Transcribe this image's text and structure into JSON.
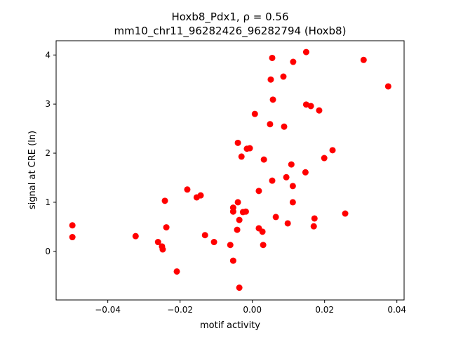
{
  "chart_data": {
    "type": "scatter",
    "title_line1": "Hoxb8_Pdx1, ρ = 0.56",
    "title_line2": "mm10_chr11_96282426_96282794 (Hoxb8)",
    "xlabel": "motif activity",
    "ylabel": "signal at CRE (ln)",
    "xlim": [
      -0.0543,
      0.042
    ],
    "ylim": [
      -0.99,
      4.29
    ],
    "xticks": [
      -0.04,
      -0.02,
      0.0,
      0.02,
      0.04
    ],
    "xtick_labels": [
      "−0.04",
      "−0.02",
      "0.00",
      "0.02",
      "0.04"
    ],
    "yticks": [
      0,
      1,
      2,
      3,
      4
    ],
    "ytick_labels": [
      "0",
      "1",
      "2",
      "3",
      "4"
    ],
    "marker_color": "#ff0000",
    "grid": false,
    "points": [
      [
        -0.0498,
        0.53
      ],
      [
        -0.0498,
        0.29
      ],
      [
        -0.0323,
        0.31
      ],
      [
        -0.0261,
        0.19
      ],
      [
        -0.025,
        0.1
      ],
      [
        -0.0248,
        0.04
      ],
      [
        -0.0242,
        1.03
      ],
      [
        -0.0238,
        0.49
      ],
      [
        -0.0209,
        -0.41
      ],
      [
        -0.018,
        1.26
      ],
      [
        -0.0154,
        1.1
      ],
      [
        -0.0143,
        1.14
      ],
      [
        -0.0131,
        0.33
      ],
      [
        -0.0106,
        0.19
      ],
      [
        -0.0061,
        0.13
      ],
      [
        -0.0053,
        -0.19
      ],
      [
        -0.0053,
        0.89
      ],
      [
        -0.0053,
        0.81
      ],
      [
        -0.004,
        2.21
      ],
      [
        -0.004,
        1.0
      ],
      [
        -0.0042,
        0.44
      ],
      [
        -0.0036,
        -0.74
      ],
      [
        -0.0036,
        0.64
      ],
      [
        -0.003,
        1.93
      ],
      [
        -0.0026,
        0.8
      ],
      [
        -0.0018,
        0.81
      ],
      [
        -0.0015,
        2.09
      ],
      [
        -0.0007,
        2.1
      ],
      [
        0.0007,
        2.8
      ],
      [
        0.0018,
        1.23
      ],
      [
        0.0018,
        0.47
      ],
      [
        0.0028,
        0.4
      ],
      [
        0.003,
        0.13
      ],
      [
        0.0032,
        1.87
      ],
      [
        0.0049,
        2.59
      ],
      [
        0.0051,
        3.5
      ],
      [
        0.0055,
        3.94
      ],
      [
        0.0055,
        1.44
      ],
      [
        0.0057,
        3.09
      ],
      [
        0.0065,
        0.7
      ],
      [
        0.0086,
        3.56
      ],
      [
        0.0088,
        2.54
      ],
      [
        0.0094,
        1.51
      ],
      [
        0.0098,
        0.57
      ],
      [
        0.0108,
        1.77
      ],
      [
        0.0112,
        1.0
      ],
      [
        0.0112,
        1.33
      ],
      [
        0.0113,
        3.86
      ],
      [
        0.0147,
        1.61
      ],
      [
        0.0149,
        2.99
      ],
      [
        0.0149,
        4.06
      ],
      [
        0.0162,
        2.96
      ],
      [
        0.017,
        0.51
      ],
      [
        0.0172,
        0.67
      ],
      [
        0.0185,
        2.87
      ],
      [
        0.0199,
        1.9
      ],
      [
        0.0222,
        2.06
      ],
      [
        0.0257,
        0.77
      ],
      [
        0.0308,
        3.9
      ],
      [
        0.0376,
        3.36
      ]
    ]
  }
}
